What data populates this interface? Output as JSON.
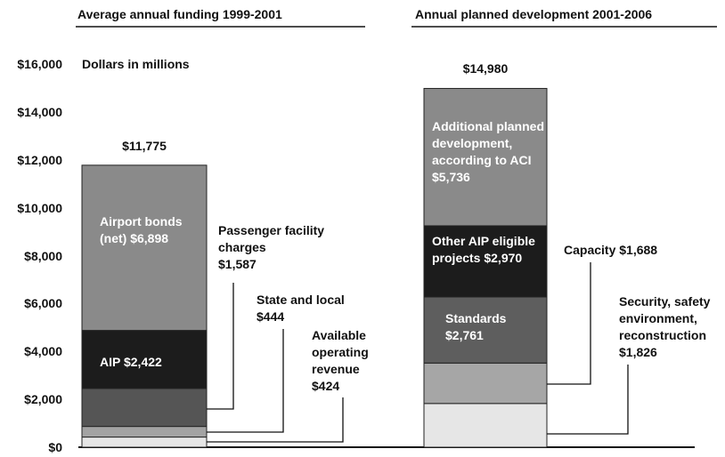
{
  "chart_data": {
    "type": "stacked_bar",
    "y_label": "Dollars in millions",
    "ylim": [
      0,
      16000
    ],
    "yticks": [
      {
        "value": 0,
        "label": "$0"
      },
      {
        "value": 2000,
        "label": "$2,000"
      },
      {
        "value": 4000,
        "label": "$4,000"
      },
      {
        "value": 6000,
        "label": "$6,000"
      },
      {
        "value": 8000,
        "label": "$8,000"
      },
      {
        "value": 10000,
        "label": "$10,000"
      },
      {
        "value": 12000,
        "label": "$12,000"
      },
      {
        "value": 14000,
        "label": "$14,000"
      },
      {
        "value": 16000,
        "label": "$16,000"
      }
    ],
    "bars": [
      {
        "title": "Average annual funding 1999-2001",
        "total": {
          "value": 11775,
          "label": "$11,775"
        },
        "segments": [
          {
            "name": "Available operating revenue",
            "value": 424,
            "value_label": "$424",
            "color": "#e6e6e6"
          },
          {
            "name": "State and local",
            "value": 444,
            "value_label": "$444",
            "color": "#a3a3a3"
          },
          {
            "name": "Passenger facility charges",
            "value": 1587,
            "value_label": "$1,587",
            "color": "#555555"
          },
          {
            "name": "AIP",
            "value": 2422,
            "value_label": "$2,422",
            "color": "#1c1c1c"
          },
          {
            "name": "Airport bonds (net)",
            "value": 6898,
            "value_label": "$6,898",
            "color": "#8a8a8a"
          }
        ]
      },
      {
        "title": "Annual planned development 2001-2006",
        "total": {
          "value": 14980,
          "label": "$14,980"
        },
        "segments": [
          {
            "name": "Security, safety environment, reconstruction",
            "value": 1826,
            "value_label": "$1,826",
            "color": "#e6e6e6"
          },
          {
            "name": "Capacity",
            "value": 1688,
            "value_label": "$1,688",
            "color": "#a6a6a6"
          },
          {
            "name": "Standards",
            "value": 2761,
            "value_label": "$2,761",
            "color": "#5e5e5e"
          },
          {
            "name": "Other AIP eligible projects",
            "value": 2970,
            "value_label": "$2,970",
            "color": "#1c1c1c"
          },
          {
            "name": "Additional planned development, according to ACI",
            "value": 5736,
            "value_label": "$5,736",
            "color": "#8a8a8a"
          }
        ]
      }
    ]
  }
}
